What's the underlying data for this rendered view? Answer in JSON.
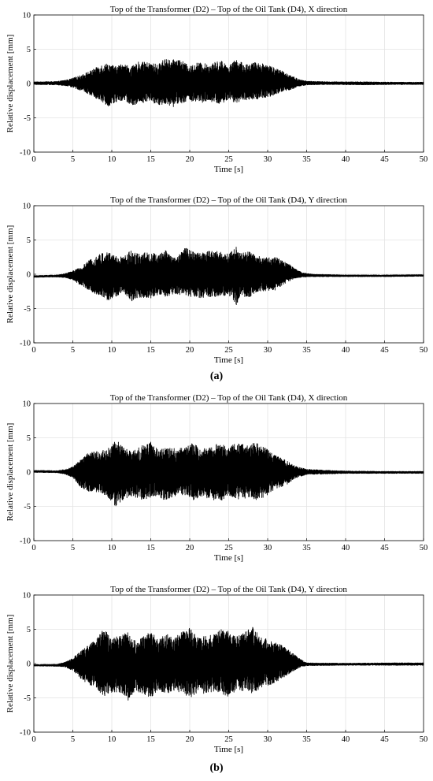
{
  "figure": {
    "label_a": "(a)",
    "label_b": "(b)"
  },
  "chart_data": [
    {
      "type": "line",
      "panel": "a",
      "title": "Top of the Transformer (D2) – Top of the Oil Tank (D4), X direction",
      "xlabel": "Time [s]",
      "ylabel": "Relative displacement [mm]",
      "xlim": [
        0,
        50
      ],
      "ylim": [
        -10,
        10
      ],
      "xticks": [
        0,
        5,
        10,
        15,
        20,
        25,
        30,
        35,
        40,
        45,
        50
      ],
      "yticks": [
        -10,
        -5,
        0,
        5,
        10
      ],
      "grid": true,
      "series": [
        {
          "color": "#000000",
          "envelope_time": [
            0,
            3,
            4.5,
            6,
            7.5,
            8.5,
            9.5,
            10.5,
            11.5,
            12.5,
            13.5,
            15,
            16,
            17,
            17.5,
            18.5,
            20,
            21,
            22.5,
            24,
            25,
            26,
            27,
            28.5,
            30,
            31.5,
            33,
            34,
            35,
            38,
            42,
            46,
            50
          ],
          "envelope_max": [
            0.25,
            0.3,
            0.6,
            1.2,
            2.0,
            2.7,
            3.0,
            2.5,
            3.0,
            2.4,
            3.2,
            3.0,
            2.8,
            3.9,
            3.3,
            3.7,
            2.5,
            3.1,
            2.8,
            3.4,
            2.6,
            3.6,
            2.8,
            3.1,
            2.8,
            2.0,
            1.2,
            0.6,
            0.35,
            0.25,
            0.25,
            0.2,
            0.2
          ],
          "envelope_min": [
            -0.15,
            -0.2,
            -0.4,
            -1.0,
            -1.8,
            -2.5,
            -3.3,
            -2.8,
            -2.4,
            -3.2,
            -2.9,
            -2.6,
            -3.2,
            -2.9,
            -3.7,
            -3.0,
            -2.5,
            -2.9,
            -2.7,
            -3.0,
            -2.5,
            -2.8,
            -2.4,
            -2.3,
            -2.0,
            -1.4,
            -0.9,
            -0.4,
            -0.2,
            -0.15,
            -0.2,
            -0.15,
            -0.15
          ]
        }
      ]
    },
    {
      "type": "line",
      "panel": "a",
      "title": "Top of the Transformer (D2) – Top of the Oil Tank (D4), Y direction",
      "xlabel": "Time [s]",
      "ylabel": "Relative displacement [mm]",
      "xlim": [
        0,
        50
      ],
      "ylim": [
        -10,
        10
      ],
      "xticks": [
        0,
        5,
        10,
        15,
        20,
        25,
        30,
        35,
        40,
        45,
        50
      ],
      "yticks": [
        -10,
        -5,
        0,
        5,
        10
      ],
      "grid": true,
      "series": [
        {
          "color": "#000000",
          "envelope_time": [
            0,
            3,
            4,
            5,
            6,
            7.5,
            8.5,
            9.5,
            10.5,
            11.5,
            12.5,
            13.5,
            15,
            16,
            17,
            18,
            19.5,
            20.5,
            21.5,
            22.5,
            23.5,
            25,
            26,
            26.5,
            27.5,
            28.5,
            30,
            31,
            32.5,
            33.5,
            34.5,
            36,
            40,
            45,
            50
          ],
          "envelope_max": [
            -0.2,
            -0.1,
            0.1,
            0.5,
            1.0,
            2.4,
            3.0,
            3.3,
            2.8,
            2.5,
            3.6,
            3.0,
            3.3,
            2.8,
            3.6,
            2.4,
            3.9,
            3.2,
            3.2,
            3.5,
            3.4,
            3.0,
            4.2,
            3.0,
            3.4,
            2.7,
            2.5,
            2.5,
            1.7,
            0.8,
            0.2,
            0.0,
            -0.1,
            -0.1,
            -0.05
          ],
          "envelope_min": [
            -0.45,
            -0.4,
            -0.5,
            -0.8,
            -1.6,
            -2.6,
            -3.2,
            -3.8,
            -3.3,
            -2.6,
            -4.0,
            -3.4,
            -3.5,
            -3.0,
            -3.4,
            -2.8,
            -3.2,
            -3.4,
            -3.5,
            -3.3,
            -3.3,
            -3.0,
            -4.5,
            -3.1,
            -3.5,
            -2.6,
            -2.4,
            -2.3,
            -1.2,
            -0.6,
            -0.4,
            -0.35,
            -0.35,
            -0.35,
            -0.3
          ]
        }
      ]
    },
    {
      "type": "line",
      "panel": "b",
      "title": "Top of the Transformer (D2) – Top of the Oil Tank (D4), X direction",
      "xlabel": "Time [s]",
      "ylabel": "Relative displacement [mm]",
      "xlim": [
        0,
        50
      ],
      "ylim": [
        -10,
        10
      ],
      "xticks": [
        0,
        5,
        10,
        15,
        20,
        25,
        30,
        35,
        40,
        45,
        50
      ],
      "yticks": [
        -10,
        -5,
        0,
        5,
        10
      ],
      "grid": true,
      "series": [
        {
          "color": "#000000",
          "envelope_time": [
            0,
            3,
            4,
            5,
            6,
            7,
            8.5,
            9.5,
            10.5,
            11.5,
            12.5,
            13.5,
            15,
            16,
            17,
            18.5,
            19.5,
            20.5,
            21.5,
            22.5,
            24,
            25,
            26,
            27.5,
            28.5,
            30,
            31,
            32.5,
            33.5,
            35,
            40,
            45,
            50
          ],
          "envelope_max": [
            0.25,
            0.2,
            0.4,
            0.8,
            1.8,
            2.8,
            3.1,
            3.4,
            4.8,
            3.6,
            3.0,
            3.7,
            4.4,
            3.2,
            3.6,
            3.4,
            3.7,
            4.3,
            3.2,
            3.8,
            4.2,
            3.6,
            4.3,
            3.8,
            4.5,
            3.3,
            2.5,
            1.6,
            0.9,
            0.4,
            0.15,
            0.1,
            0.1
          ],
          "envelope_min": [
            -0.05,
            -0.1,
            -0.3,
            -0.8,
            -2.2,
            -2.8,
            -3.0,
            -3.8,
            -5.0,
            -4.0,
            -3.5,
            -4.1,
            -3.8,
            -3.5,
            -4.3,
            -3.3,
            -3.4,
            -4.2,
            -3.5,
            -3.9,
            -4.3,
            -3.5,
            -4.0,
            -3.8,
            -4.2,
            -3.4,
            -2.5,
            -1.8,
            -0.9,
            -0.35,
            -0.2,
            -0.2,
            -0.2
          ]
        }
      ]
    },
    {
      "type": "line",
      "panel": "b",
      "title": "Top of the Transformer (D2) – Top of the Oil Tank (D4), Y direction",
      "xlabel": "Time [s]",
      "ylabel": "Relative displacement [mm]",
      "xlim": [
        0,
        50
      ],
      "ylim": [
        -10,
        10
      ],
      "xticks": [
        0,
        5,
        10,
        15,
        20,
        25,
        30,
        35,
        40,
        45,
        50
      ],
      "yticks": [
        -10,
        -5,
        0,
        5,
        10
      ],
      "grid": true,
      "series": [
        {
          "color": "#000000",
          "envelope_time": [
            0,
            3,
            4,
            5,
            6,
            7,
            8,
            9,
            10,
            11,
            12,
            13,
            14,
            15,
            16,
            17,
            18,
            19,
            20,
            21,
            22,
            23,
            24,
            25,
            26,
            27,
            28,
            29,
            30,
            31,
            32,
            33,
            34,
            35,
            40,
            45,
            50
          ],
          "envelope_max": [
            -0.15,
            -0.1,
            0.2,
            0.8,
            1.8,
            2.8,
            3.5,
            5.1,
            3.8,
            4.0,
            4.6,
            3.3,
            3.9,
            4.8,
            3.5,
            4.4,
            3.6,
            4.8,
            5.2,
            3.8,
            4.0,
            4.2,
            5.0,
            4.8,
            3.9,
            4.5,
            5.4,
            4.0,
            3.5,
            3.1,
            2.6,
            1.7,
            0.8,
            0.1,
            0.05,
            0.1,
            0.1
          ],
          "envelope_min": [
            -0.35,
            -0.4,
            -0.5,
            -1.0,
            -2.2,
            -3.0,
            -3.5,
            -5.1,
            -4.2,
            -4.2,
            -5.5,
            -4.0,
            -4.4,
            -5.0,
            -3.8,
            -4.5,
            -4.0,
            -4.4,
            -5.1,
            -4.2,
            -4.4,
            -4.1,
            -4.5,
            -4.8,
            -3.9,
            -4.0,
            -4.3,
            -3.7,
            -3.2,
            -2.8,
            -2.1,
            -1.3,
            -0.6,
            -0.3,
            -0.25,
            -0.25,
            -0.25
          ]
        }
      ]
    }
  ]
}
